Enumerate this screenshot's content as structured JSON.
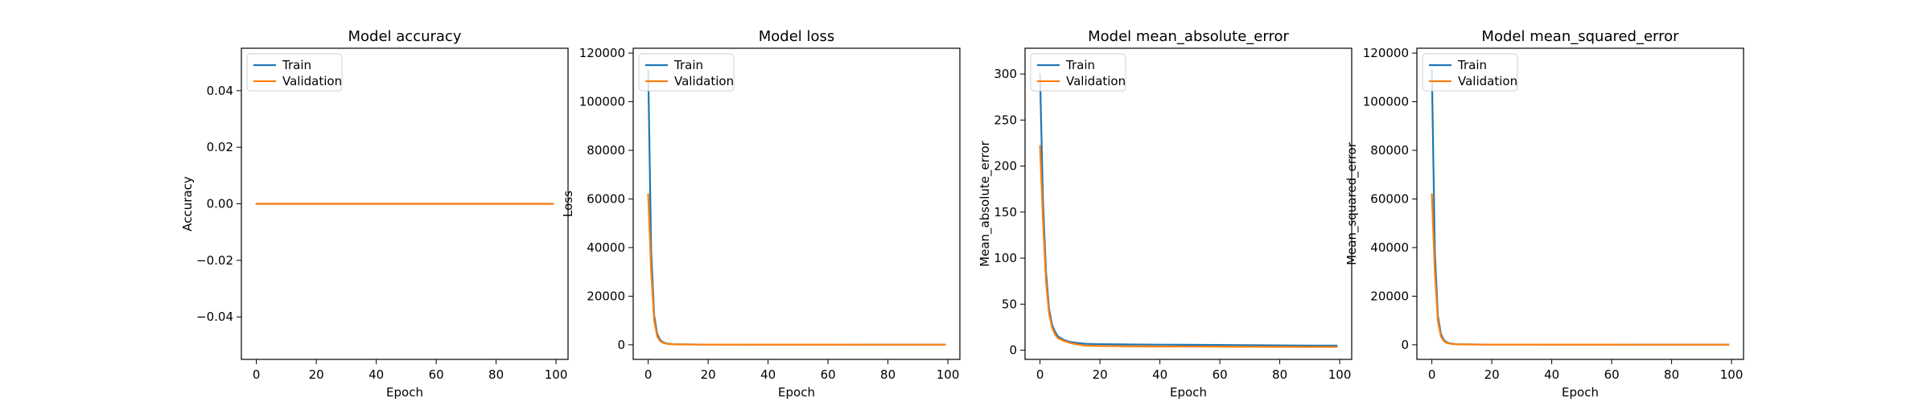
{
  "colors": {
    "train": "#1f77b4",
    "validation": "#ff7f0e"
  },
  "chart_data": [
    {
      "type": "line",
      "title": "Model accuracy",
      "xlabel": "Epoch",
      "ylabel": "Accuracy",
      "xlim": [
        -5,
        104
      ],
      "ylim": [
        -0.055,
        0.055
      ],
      "xticks": [
        0,
        20,
        40,
        60,
        80,
        100
      ],
      "yticks": [
        -0.04,
        -0.02,
        0.0,
        0.02,
        0.04
      ],
      "ytick_labels": [
        "−0.04",
        "−0.02",
        "0.00",
        "0.02",
        "0.04"
      ],
      "legend": "upper-left",
      "grid": false,
      "series": [
        {
          "name": "Train",
          "color_key": "train",
          "points": [
            [
              0,
              0
            ],
            [
              99,
              0
            ]
          ]
        },
        {
          "name": "Validation",
          "color_key": "validation",
          "points": [
            [
              0,
              0
            ],
            [
              99,
              0
            ]
          ]
        }
      ]
    },
    {
      "type": "line",
      "title": "Model loss",
      "xlabel": "Epoch",
      "ylabel": "Loss",
      "xlim": [
        -5,
        104
      ],
      "ylim": [
        -6000,
        122000
      ],
      "xticks": [
        0,
        20,
        40,
        60,
        80,
        100
      ],
      "yticks": [
        0,
        20000,
        40000,
        60000,
        80000,
        100000,
        120000
      ],
      "ytick_labels": [
        "0",
        "20000",
        "40000",
        "60000",
        "80000",
        "100000",
        "120000"
      ],
      "legend": "upper-left",
      "grid": false,
      "series": [
        {
          "name": "Train",
          "color_key": "train",
          "points": [
            [
              0,
              113000
            ],
            [
              1,
              38000
            ],
            [
              2,
              12000
            ],
            [
              3,
              4500
            ],
            [
              4,
              2000
            ],
            [
              5,
              1000
            ],
            [
              6,
              600
            ],
            [
              8,
              300
            ],
            [
              10,
              200
            ],
            [
              15,
              120
            ],
            [
              20,
              100
            ],
            [
              40,
              90
            ],
            [
              60,
              85
            ],
            [
              80,
              80
            ],
            [
              99,
              80
            ]
          ]
        },
        {
          "name": "Validation",
          "color_key": "validation",
          "points": [
            [
              0,
              62000
            ],
            [
              1,
              30000
            ],
            [
              2,
              10000
            ],
            [
              3,
              3500
            ],
            [
              4,
              1500
            ],
            [
              5,
              800
            ],
            [
              6,
              450
            ],
            [
              8,
              250
            ],
            [
              10,
              150
            ],
            [
              15,
              100
            ],
            [
              20,
              80
            ],
            [
              40,
              70
            ],
            [
              60,
              65
            ],
            [
              80,
              60
            ],
            [
              99,
              60
            ]
          ]
        }
      ]
    },
    {
      "type": "line",
      "title": "Model mean_absolute_error",
      "xlabel": "Epoch",
      "ylabel": "Mean_absolute_error",
      "xlim": [
        -5,
        104
      ],
      "ylim": [
        -10,
        328
      ],
      "xticks": [
        0,
        20,
        40,
        60,
        80,
        100
      ],
      "yticks": [
        0,
        50,
        100,
        150,
        200,
        250,
        300
      ],
      "ytick_labels": [
        "0",
        "50",
        "100",
        "150",
        "200",
        "250",
        "300"
      ],
      "legend": "upper-left",
      "grid": false,
      "series": [
        {
          "name": "Train",
          "color_key": "train",
          "points": [
            [
              0,
              300
            ],
            [
              1,
              160
            ],
            [
              2,
              85
            ],
            [
              3,
              45
            ],
            [
              4,
              28
            ],
            [
              5,
              20
            ],
            [
              6,
              15
            ],
            [
              8,
              11
            ],
            [
              10,
              9
            ],
            [
              12,
              8
            ],
            [
              15,
              7
            ],
            [
              20,
              6.5
            ],
            [
              30,
              6.2
            ],
            [
              40,
              6
            ],
            [
              50,
              5.8
            ],
            [
              60,
              5.6
            ],
            [
              70,
              5.4
            ],
            [
              80,
              5.2
            ],
            [
              90,
              5
            ],
            [
              99,
              5
            ]
          ]
        },
        {
          "name": "Validation",
          "color_key": "validation",
          "points": [
            [
              0,
              222
            ],
            [
              1,
              140
            ],
            [
              2,
              75
            ],
            [
              3,
              40
            ],
            [
              4,
              25
            ],
            [
              5,
              17
            ],
            [
              6,
              13
            ],
            [
              8,
              10
            ],
            [
              10,
              8
            ],
            [
              12,
              6.5
            ],
            [
              15,
              5
            ],
            [
              20,
              4.5
            ],
            [
              30,
              4.2
            ],
            [
              40,
              4
            ],
            [
              50,
              3.9
            ],
            [
              60,
              3.8
            ],
            [
              70,
              3.7
            ],
            [
              80,
              3.6
            ],
            [
              90,
              3.5
            ],
            [
              99,
              3.5
            ]
          ]
        }
      ]
    },
    {
      "type": "line",
      "title": "Model mean_squared_error",
      "xlabel": "Epoch",
      "ylabel": "Mean_squared_error",
      "xlim": [
        -5,
        104
      ],
      "ylim": [
        -6000,
        122000
      ],
      "xticks": [
        0,
        20,
        40,
        60,
        80,
        100
      ],
      "yticks": [
        0,
        20000,
        40000,
        60000,
        80000,
        100000,
        120000
      ],
      "ytick_labels": [
        "0",
        "20000",
        "40000",
        "60000",
        "80000",
        "100000",
        "120000"
      ],
      "legend": "upper-left",
      "grid": false,
      "series": [
        {
          "name": "Train",
          "color_key": "train",
          "points": [
            [
              0,
              113000
            ],
            [
              1,
              38000
            ],
            [
              2,
              12000
            ],
            [
              3,
              4500
            ],
            [
              4,
              2000
            ],
            [
              5,
              1000
            ],
            [
              6,
              600
            ],
            [
              8,
              300
            ],
            [
              10,
              200
            ],
            [
              15,
              120
            ],
            [
              20,
              100
            ],
            [
              40,
              90
            ],
            [
              60,
              85
            ],
            [
              80,
              80
            ],
            [
              99,
              80
            ]
          ]
        },
        {
          "name": "Validation",
          "color_key": "validation",
          "points": [
            [
              0,
              62000
            ],
            [
              1,
              30000
            ],
            [
              2,
              10000
            ],
            [
              3,
              3500
            ],
            [
              4,
              1500
            ],
            [
              5,
              800
            ],
            [
              6,
              450
            ],
            [
              8,
              250
            ],
            [
              10,
              150
            ],
            [
              15,
              100
            ],
            [
              20,
              80
            ],
            [
              40,
              70
            ],
            [
              60,
              65
            ],
            [
              80,
              60
            ],
            [
              99,
              60
            ]
          ]
        }
      ]
    }
  ]
}
